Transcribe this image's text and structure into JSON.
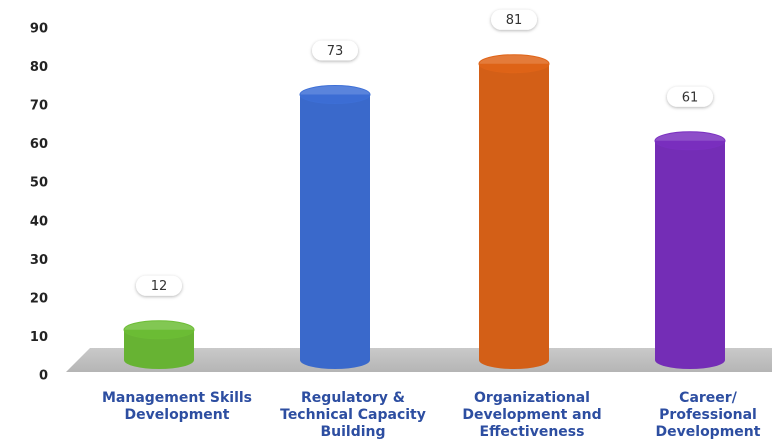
{
  "chart_data": {
    "type": "cylinder_bar",
    "categories": [
      "Management Skills Development",
      "Regulatory & Technical Capacity Building",
      "Organizational Development and Effectiveness",
      "Career/ Professional Development"
    ],
    "values": [
      12,
      73,
      81,
      61
    ],
    "colors": [
      "#6cbd35",
      "#3d6fd6",
      "#df6418",
      "#7a2fc0"
    ],
    "ylim": [
      0,
      90
    ],
    "yticks": [
      0,
      10,
      20,
      30,
      40,
      50,
      60,
      70,
      80,
      90
    ],
    "grid": false
  }
}
